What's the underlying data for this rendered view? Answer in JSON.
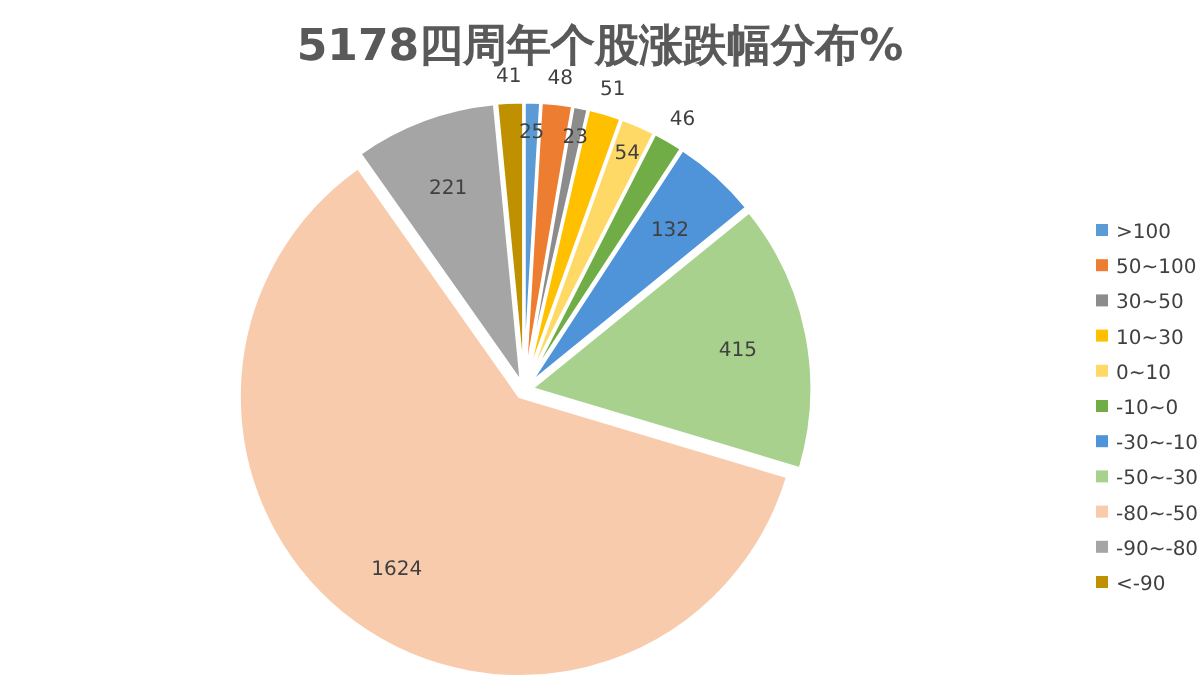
{
  "chart_data": {
    "type": "pie",
    "title": "5178四周年个股涨跌幅分布%",
    "categories": [
      ">100",
      "50~100",
      "30~50",
      "10~30",
      "0~10",
      "-10~0",
      "-30~-10",
      "-50~-30",
      "-80~-50",
      "-90~-80",
      "<-90"
    ],
    "values": [
      25,
      48,
      23,
      51,
      54,
      46,
      132,
      415,
      1624,
      221,
      41
    ],
    "colors": [
      "#5b9bd5",
      "#ed7d31",
      "#8c8c8c",
      "#ffc000",
      "#ffd966",
      "#70ad47",
      "#4f93d8",
      "#a9d18e",
      "#f8cbad",
      "#a5a5a5",
      "#bf9000"
    ],
    "data_labels": true,
    "legend": "right"
  }
}
